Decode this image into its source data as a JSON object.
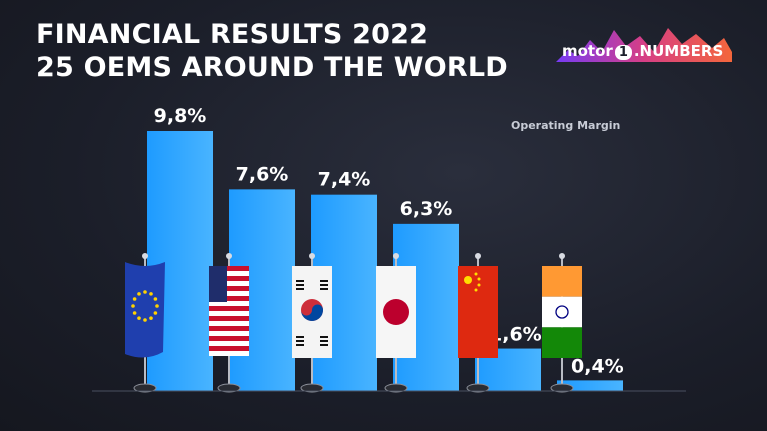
{
  "title": {
    "line1": "FINANCIAL RESULTS 2022",
    "line2": "25 OEMS AROUND THE WORLD"
  },
  "logo": {
    "part1": "motor",
    "badge": "1",
    "part2": ".NUMBERS"
  },
  "colors": {
    "bar": "#1e9bff",
    "bar_light": "#49b4ff",
    "background": "#1c1f2b"
  },
  "chart_data": {
    "type": "bar",
    "categories": [
      "",
      "",
      "",
      "",
      "",
      ""
    ],
    "category_icons": [
      "eu-flag",
      "usa-flag",
      "south-korea-flag",
      "japan-flag",
      "china-flag",
      "india-flag"
    ],
    "series": [
      {
        "name": "Operating Margin",
        "values": [
          9.8,
          7.6,
          7.4,
          6.3,
          1.6,
          0.4
        ],
        "labels": [
          "9,8%",
          "7,6%",
          "7,4%",
          "6,3%",
          "1,6%",
          "0,4%"
        ]
      }
    ],
    "ylim": [
      0,
      10
    ],
    "legend": "Operating Margin",
    "legend_position": "top-right",
    "grid": false,
    "xlabel": "",
    "ylabel": ""
  }
}
